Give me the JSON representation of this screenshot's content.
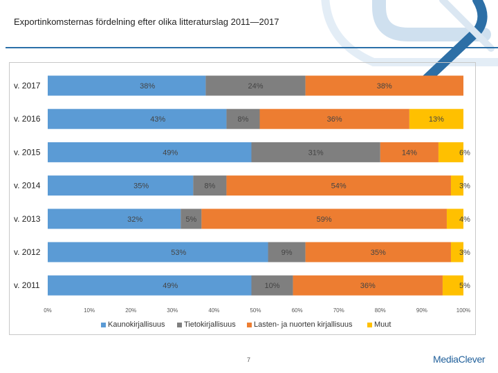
{
  "slide": {
    "title": "Exportinkomsternas fördelning efter olika litteraturslag 2011—2017",
    "page_number": "7",
    "logo_text": "MediaClever"
  },
  "colors": {
    "title_rule": "#2a6fa8",
    "decoration": "#2d6fa6"
  },
  "chart_data": {
    "type": "bar",
    "orientation": "horizontal",
    "stacked": true,
    "categories": [
      "v. 2017",
      "v. 2016",
      "v. 2015",
      "v. 2014",
      "v. 2013",
      "v. 2012",
      "v. 2011"
    ],
    "series": [
      {
        "name": "Kaunokirjallisuus",
        "color": "#5b9bd5",
        "values": [
          38,
          43,
          49,
          35,
          32,
          53,
          49
        ]
      },
      {
        "name": "Tietokirjallisuus",
        "color": "#7f7f7f",
        "values": [
          24,
          8,
          31,
          8,
          5,
          9,
          10
        ]
      },
      {
        "name": "Lasten- ja nuorten kirjallisuus",
        "color": "#ed7d31",
        "values": [
          38,
          36,
          14,
          54,
          59,
          35,
          36
        ]
      },
      {
        "name": "Muut",
        "color": "#ffc000",
        "values": [
          0,
          13,
          6,
          3,
          4,
          3,
          5
        ]
      }
    ],
    "data_labels": [
      [
        "38%",
        "24%",
        "38%",
        ""
      ],
      [
        "43%",
        "8%",
        "36%",
        "13%"
      ],
      [
        "49%",
        "31%",
        "14%",
        "6%"
      ],
      [
        "35%",
        "8%",
        "54%",
        "3%"
      ],
      [
        "32%",
        "5%",
        "59%",
        "4%"
      ],
      [
        "53%",
        "9%",
        "35%",
        "3%"
      ],
      [
        "49%",
        "10%",
        "36%",
        "5%"
      ]
    ],
    "xlim": [
      0,
      100
    ],
    "x_ticks": [
      "0%",
      "10%",
      "20%",
      "30%",
      "40%",
      "50%",
      "60%",
      "70%",
      "80%",
      "90%",
      "100%"
    ],
    "legend_position": "bottom",
    "grid": false
  }
}
